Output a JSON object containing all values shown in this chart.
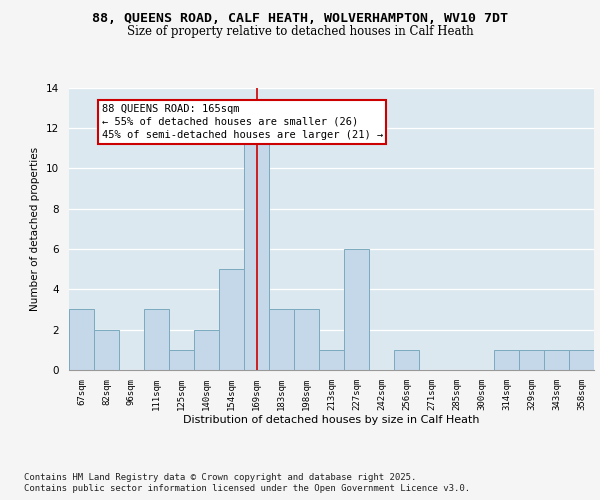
{
  "title_line1": "88, QUEENS ROAD, CALF HEATH, WOLVERHAMPTON, WV10 7DT",
  "title_line2": "Size of property relative to detached houses in Calf Heath",
  "xlabel": "Distribution of detached houses by size in Calf Heath",
  "ylabel": "Number of detached properties",
  "categories": [
    "67sqm",
    "82sqm",
    "96sqm",
    "111sqm",
    "125sqm",
    "140sqm",
    "154sqm",
    "169sqm",
    "183sqm",
    "198sqm",
    "213sqm",
    "227sqm",
    "242sqm",
    "256sqm",
    "271sqm",
    "285sqm",
    "300sqm",
    "314sqm",
    "329sqm",
    "343sqm",
    "358sqm"
  ],
  "values": [
    3,
    2,
    0,
    3,
    1,
    2,
    5,
    13,
    3,
    3,
    1,
    6,
    0,
    1,
    0,
    0,
    0,
    1,
    1,
    1,
    1
  ],
  "bar_color": "#c5d8ea",
  "bar_edge_color": "#7aaabf",
  "highlight_index": 7,
  "highlight_line_color": "#cc0000",
  "ylim": [
    0,
    14
  ],
  "yticks": [
    0,
    2,
    4,
    6,
    8,
    10,
    12,
    14
  ],
  "annotation_text": "88 QUEENS ROAD: 165sqm\n← 55% of detached houses are smaller (26)\n45% of semi-detached houses are larger (21) →",
  "annotation_box_color": "#ffffff",
  "annotation_border_color": "#cc0000",
  "footnote_line1": "Contains HM Land Registry data © Crown copyright and database right 2025.",
  "footnote_line2": "Contains public sector information licensed under the Open Government Licence v3.0.",
  "background_color": "#dce8f0",
  "fig_background_color": "#f5f5f5",
  "grid_color": "#ffffff",
  "title_fontsize": 9.5,
  "subtitle_fontsize": 8.5,
  "annotation_fontsize": 7.5,
  "footnote_fontsize": 6.5,
  "ylabel_fontsize": 7.5,
  "xlabel_fontsize": 8
}
